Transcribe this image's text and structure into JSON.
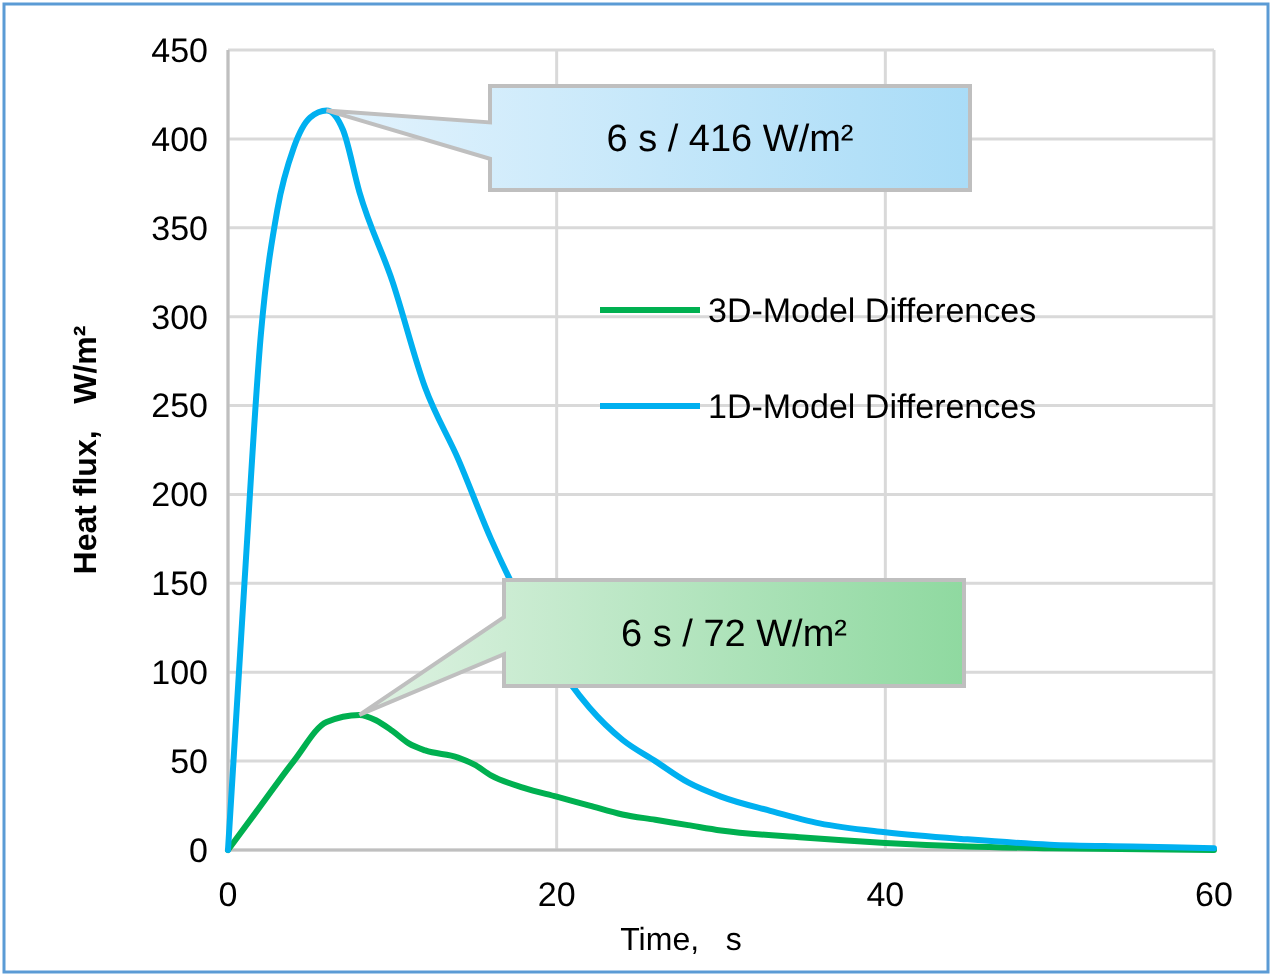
{
  "chart_data": {
    "type": "line",
    "xlabel": "Time,   s",
    "ylabel": "Heat flux,   W/m²",
    "xlim": [
      0,
      60
    ],
    "xticks": [
      0,
      20,
      40,
      60
    ],
    "ylim": [
      0,
      450
    ],
    "yticks": [
      0,
      50,
      100,
      150,
      200,
      250,
      300,
      350,
      400,
      450
    ],
    "grid": true,
    "legend": "right",
    "marker": "none",
    "line_style": "solid",
    "series": [
      {
        "name": "3D-Model Differences",
        "color": "#00b050",
        "x": [
          0,
          2,
          4,
          6,
          8,
          9,
          10,
          11,
          12,
          14,
          15,
          16,
          18,
          20,
          22,
          24,
          26,
          28,
          30,
          35,
          40,
          45,
          50,
          60
        ],
        "values": [
          0,
          25,
          50,
          72,
          76,
          73,
          67,
          60,
          56,
          52,
          48,
          42,
          35,
          30,
          25,
          20,
          17,
          14,
          11,
          7,
          4,
          2,
          1,
          0
        ]
      },
      {
        "name": "1D-Model Differences",
        "color": "#00b0f0",
        "x": [
          0,
          1,
          2,
          3,
          4,
          5,
          6,
          7,
          8,
          10,
          12,
          14,
          16,
          22,
          24,
          26,
          28,
          30,
          33,
          36,
          40,
          45,
          50,
          55,
          60
        ],
        "values": [
          0,
          150,
          290,
          360,
          395,
          412,
          416,
          405,
          370,
          320,
          260,
          220,
          175,
          80,
          62,
          50,
          38,
          30,
          22,
          15,
          10,
          6,
          3,
          2,
          1
        ]
      }
    ],
    "annotations": [
      "6 s / 416 W/m²",
      "6 s / 72 W/m²"
    ]
  }
}
